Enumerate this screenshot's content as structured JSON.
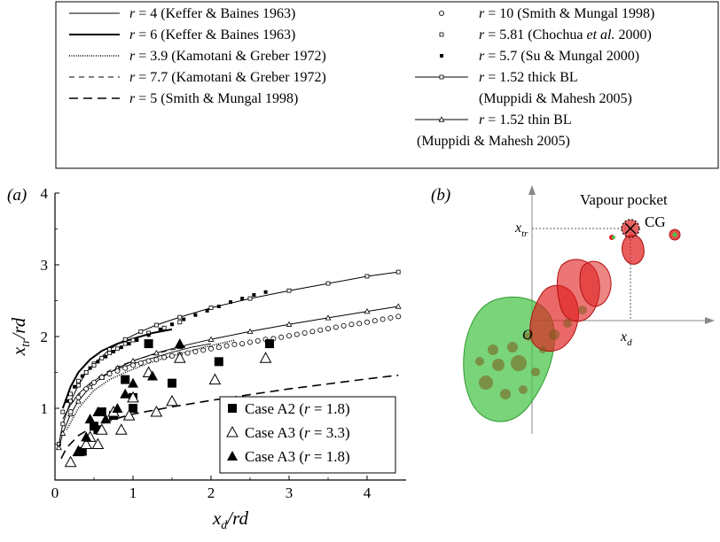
{
  "panel_a": {
    "label": "(a)"
  },
  "panel_b": {
    "label": "(b)"
  },
  "legend_top": {
    "left": [
      {
        "text": "r = 4 (Keffer & Baines 1963)",
        "style": "thin"
      },
      {
        "text": "r = 6 (Keffer & Baines 1963)",
        "style": "thick"
      },
      {
        "text": "r = 3.9 (Kamotani & Greber 1972)",
        "style": "dotted"
      },
      {
        "text": "r = 7.7 (Kamotani & Greber 1972)",
        "style": "dashed-thin"
      },
      {
        "text": "r = 5 (Smith & Mungal 1998)",
        "style": "dashed-long"
      }
    ],
    "right": [
      {
        "text": "r = 10 (Smith & Mungal 1998)",
        "marker": "open-circle"
      },
      {
        "text": "r = 5.81 (Chochua et al. 2000)",
        "marker": "open-square-small"
      },
      {
        "text": "r = 5.7 (Su & Mungal 2000)",
        "marker": "filled-square-small"
      },
      {
        "text": "r = 1.52 thick BL",
        "sub": "(Muppidi & Mahesh 2005)",
        "marker": "line-square"
      },
      {
        "text": "r = 1.52 thin BL",
        "sub": "(Muppidi & Mahesh 2005)",
        "marker": "line-triangle"
      }
    ]
  },
  "chart_data": {
    "type": "scatter",
    "xlabel": "x_d/rd",
    "ylabel": "x_tr/rd",
    "xlim": [
      0,
      4.5
    ],
    "ylim": [
      0,
      4
    ],
    "xticks": [
      "0",
      "1",
      "2",
      "3",
      "4"
    ],
    "yticks": [
      "1",
      "2",
      "3",
      "4"
    ],
    "lines": [
      {
        "name": "r = 4 (Keffer & Baines 1963)",
        "style": "thin",
        "x": [
          0.1,
          0.2,
          0.3,
          0.45,
          0.6,
          0.8,
          1.0,
          1.25,
          1.5,
          1.75,
          2.0
        ],
        "y": [
          0.85,
          1.05,
          1.2,
          1.35,
          1.45,
          1.55,
          1.62,
          1.7,
          1.78,
          1.85,
          1.9
        ]
      },
      {
        "name": "r = 6 (Keffer & Baines 1963)",
        "style": "thick",
        "x": [
          0.1,
          0.2,
          0.3,
          0.45,
          0.6,
          0.8,
          1.0,
          1.25,
          1.5
        ],
        "y": [
          1.0,
          1.3,
          1.5,
          1.68,
          1.8,
          1.9,
          1.97,
          2.05,
          2.1
        ]
      },
      {
        "name": "r = 3.9 (Kamotani & Greber 1972)",
        "style": "dotted",
        "x": [
          0.15,
          0.3,
          0.5,
          0.7,
          0.9,
          1.2,
          1.5,
          1.8,
          2.1,
          2.3
        ],
        "y": [
          0.7,
          1.0,
          1.25,
          1.4,
          1.5,
          1.63,
          1.73,
          1.82,
          1.9,
          1.95
        ]
      },
      {
        "name": "r = 7.7 (Kamotani & Greber 1972)",
        "style": "dashed-thin",
        "x": [
          0.2,
          0.4,
          0.6,
          0.8,
          1.0,
          1.2,
          1.4,
          1.6,
          1.7
        ],
        "y": [
          1.05,
          1.3,
          1.47,
          1.58,
          1.66,
          1.73,
          1.79,
          1.84,
          1.87
        ]
      },
      {
        "name": "r = 5 (Smith & Mungal 1998)",
        "style": "dashed-long",
        "x": [
          0.08,
          0.15,
          0.3,
          0.5,
          0.8,
          1.0,
          1.5,
          2.0,
          2.5,
          3.0,
          3.5,
          4.0,
          4.4
        ],
        "y": [
          0.3,
          0.45,
          0.62,
          0.75,
          0.86,
          0.92,
          1.02,
          1.11,
          1.19,
          1.27,
          1.34,
          1.41,
          1.46
        ]
      },
      {
        "name": "r = 1.52 thick BL (Muppidi & Mahesh 2005)",
        "style": "line-square",
        "x": [
          0.05,
          0.1,
          0.2,
          0.3,
          0.4,
          0.5,
          0.7,
          0.9,
          1.1,
          1.3,
          1.6,
          2.0,
          2.5,
          3.0,
          3.5,
          4.0,
          4.4
        ],
        "y": [
          0.5,
          0.78,
          1.1,
          1.32,
          1.5,
          1.62,
          1.82,
          1.96,
          2.07,
          2.16,
          2.27,
          2.4,
          2.53,
          2.64,
          2.74,
          2.84,
          2.9
        ]
      },
      {
        "name": "r = 1.52 thin BL (Muppidi & Mahesh 2005)",
        "style": "line-triangle",
        "x": [
          0.05,
          0.1,
          0.2,
          0.3,
          0.45,
          0.6,
          0.8,
          1.0,
          1.3,
          1.6,
          2.0,
          2.5,
          3.0,
          3.5,
          4.0,
          4.4
        ],
        "y": [
          0.45,
          0.65,
          0.92,
          1.1,
          1.3,
          1.43,
          1.56,
          1.66,
          1.77,
          1.86,
          1.96,
          2.07,
          2.17,
          2.26,
          2.35,
          2.42
        ]
      }
    ],
    "markers": [
      {
        "name": "r = 10 (Smith & Mungal 1998)",
        "marker": "open-circle",
        "x": [
          0.2,
          0.3,
          0.4,
          0.5,
          0.6,
          0.7,
          0.8,
          0.9,
          1.0,
          1.1,
          1.2,
          1.3,
          1.4,
          1.5,
          1.6,
          1.7,
          1.8,
          1.9,
          2.0,
          2.1,
          2.2,
          2.3,
          2.4,
          2.5,
          2.6,
          2.7,
          2.8,
          2.9,
          3.0,
          3.1,
          3.2,
          3.3,
          3.4,
          3.5,
          3.6,
          3.7,
          3.8,
          3.9,
          4.0,
          4.1,
          4.2,
          4.3,
          4.4
        ],
        "y": [
          0.95,
          1.15,
          1.27,
          1.36,
          1.43,
          1.48,
          1.52,
          1.56,
          1.6,
          1.63,
          1.66,
          1.68,
          1.71,
          1.73,
          1.75,
          1.77,
          1.79,
          1.81,
          1.83,
          1.85,
          1.87,
          1.89,
          1.9,
          1.92,
          1.94,
          1.96,
          1.97,
          1.99,
          2.01,
          2.03,
          2.05,
          2.07,
          2.09,
          2.11,
          2.13,
          2.15,
          2.17,
          2.18,
          2.2,
          2.22,
          2.24,
          2.26,
          2.28
        ]
      },
      {
        "name": "r = 5.81 (Chochua et al. 2000)",
        "marker": "open-square-small",
        "x": [
          0.1,
          0.2,
          0.3,
          0.4,
          0.5,
          0.6,
          0.7,
          0.8,
          0.9,
          1.0,
          1.2,
          1.4,
          1.6
        ],
        "y": [
          0.95,
          1.2,
          1.38,
          1.5,
          1.6,
          1.7,
          1.77,
          1.83,
          1.9,
          1.95,
          2.05,
          2.12,
          2.2
        ]
      },
      {
        "name": "r = 5.7 (Su & Mungal 2000)",
        "marker": "filled-square-small",
        "x": [
          0.15,
          0.25,
          0.35,
          0.45,
          0.55,
          0.65,
          0.75,
          0.85,
          0.95,
          1.05,
          1.2,
          1.35,
          1.5,
          1.65,
          1.8,
          1.95,
          2.1,
          2.25,
          2.4,
          2.55,
          2.7
        ],
        "y": [
          1.1,
          1.3,
          1.45,
          1.56,
          1.65,
          1.72,
          1.79,
          1.85,
          1.9,
          1.95,
          2.02,
          2.1,
          2.17,
          2.24,
          2.3,
          2.36,
          2.42,
          2.48,
          2.53,
          2.58,
          2.62
        ]
      }
    ],
    "series": [
      {
        "name": "Case A2 (r = 1.8)",
        "marker": "filled-square",
        "x": [
          0.35,
          0.5,
          0.55,
          0.6,
          0.75,
          0.9,
          1.0,
          1.0,
          1.2,
          1.5,
          2.1,
          2.75
        ],
        "y": [
          0.4,
          0.75,
          0.7,
          0.95,
          0.9,
          1.4,
          1.0,
          1.15,
          1.9,
          1.35,
          1.65,
          1.9
        ]
      },
      {
        "name": "Case A3 (r = 3.3)",
        "marker": "open-triangle",
        "x": [
          0.2,
          0.3,
          0.4,
          0.45,
          0.55,
          0.6,
          0.75,
          0.85,
          0.95,
          1.0,
          1.2,
          1.3,
          1.5,
          1.6,
          2.05,
          2.7
        ],
        "y": [
          0.25,
          0.4,
          0.5,
          0.6,
          0.5,
          0.7,
          0.95,
          0.7,
          0.9,
          1.15,
          1.5,
          0.95,
          1.1,
          1.7,
          1.4,
          1.7
        ]
      },
      {
        "name": "Case A3 (r = 1.8)",
        "marker": "filled-triangle",
        "x": [
          0.3,
          0.4,
          0.45,
          0.55,
          0.65,
          0.8,
          0.9,
          1.0,
          1.25,
          1.6
        ],
        "y": [
          0.4,
          0.6,
          0.85,
          0.95,
          0.85,
          1.0,
          1.2,
          1.35,
          1.45,
          1.9
        ]
      }
    ],
    "legend_inset": {
      "position": "bottom-right",
      "entries": [
        "Case A2 (r = 1.8)",
        "Case A3 (r = 3.3)",
        "Case A3 (r = 1.8)"
      ]
    }
  },
  "panel_b_labels": {
    "title": "Vapour pocket",
    "cg": "CG",
    "xtr": "x_tr",
    "origin": "O",
    "xd": "x_d"
  },
  "colors": {
    "green": "#47c447",
    "red": "#e02020",
    "dark": "#7a5a1a"
  }
}
